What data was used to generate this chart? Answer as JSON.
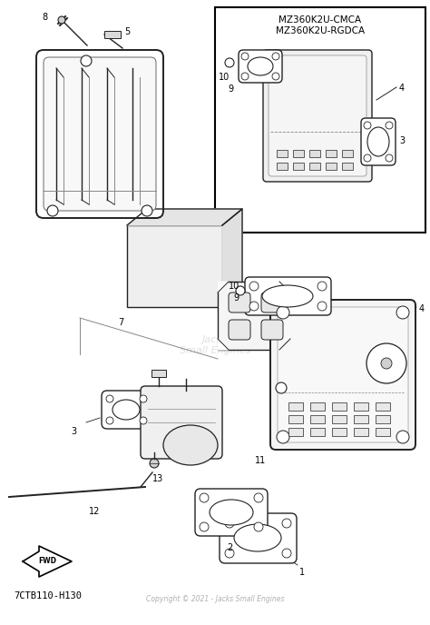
{
  "bg_color": "#ffffff",
  "line_color": "#222222",
  "inset_title1": "MZ360K2U-CMCA",
  "inset_title2": "MZ360K2U-RGDCA",
  "diagram_code": "7CTB110-H130",
  "copyright": "Copyright © 2021 - Jacks Small Engines",
  "figsize": [
    4.74,
    6.88
  ],
  "dpi": 100
}
